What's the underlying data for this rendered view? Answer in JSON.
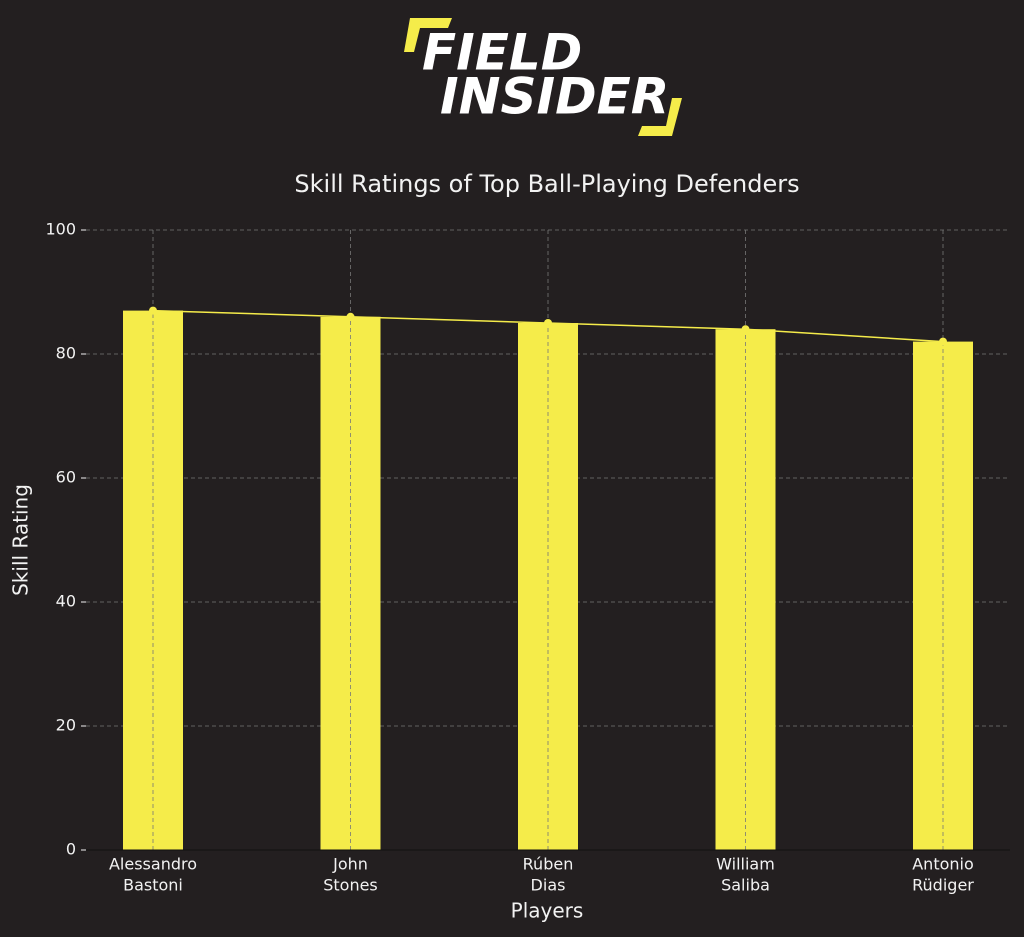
{
  "logo": {
    "line1": "FIELD",
    "line2": "INSIDER"
  },
  "chart_data": {
    "type": "bar",
    "title": "Skill Ratings of Top Ball-Playing Defenders",
    "xlabel": "Players",
    "ylabel": "Skill Rating",
    "categories": [
      [
        "Alessandro",
        "Bastoni"
      ],
      [
        "John",
        "Stones"
      ],
      [
        "Rúben",
        "Dias"
      ],
      [
        "William",
        "Saliba"
      ],
      [
        "Antonio",
        "Rüdiger"
      ]
    ],
    "values": [
      87,
      86,
      85,
      84,
      82
    ],
    "color": "#f5ec4a",
    "ylim": [
      0,
      100
    ],
    "yticks": [
      0,
      20,
      40,
      60,
      80,
      100
    ],
    "grid": true,
    "line_overlay": true
  }
}
